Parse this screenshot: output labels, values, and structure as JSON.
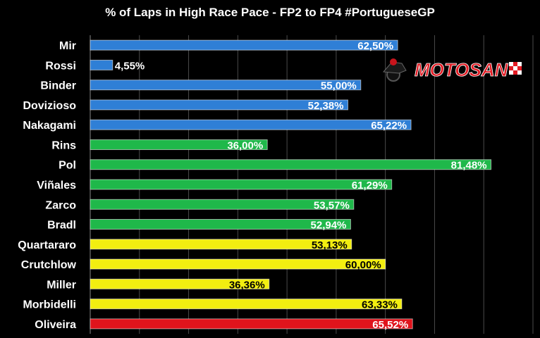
{
  "chart_data": {
    "type": "bar",
    "orientation": "horizontal",
    "title": "% of Laps in High Race Pace - FP2 to FP4 #PortugueseGP",
    "xlabel": "",
    "ylabel": "",
    "xlim": [
      0,
      90
    ],
    "grid": true,
    "categories": [
      "Mir",
      "Rossi",
      "Binder",
      "Dovizioso",
      "Nakagami",
      "Rins",
      "Pol",
      "Viñales",
      "Zarco",
      "Bradl",
      "Quartararo",
      "Crutchlow",
      "Miller",
      "Morbidelli",
      "Oliveira"
    ],
    "values": [
      62.5,
      4.55,
      55.0,
      52.38,
      65.22,
      36.0,
      81.48,
      61.29,
      53.57,
      52.94,
      53.13,
      60.0,
      36.36,
      63.33,
      65.52
    ],
    "labels": [
      "62,50%",
      "4,55%",
      "55,00%",
      "52,38%",
      "65,22%",
      "36,00%",
      "81,48%",
      "61,29%",
      "53,57%",
      "52,94%",
      "53,13%",
      "60,00%",
      "36,36%",
      "63,33%",
      "65,52%"
    ],
    "colors": [
      "#2f7fd6",
      "#2f7fd6",
      "#2f7fd6",
      "#2f7fd6",
      "#2f7fd6",
      "#1fb84a",
      "#1fb84a",
      "#1fb84a",
      "#1fb84a",
      "#1fb84a",
      "#f2ee10",
      "#f2ee10",
      "#f2ee10",
      "#f2ee10",
      "#e0141c"
    ]
  },
  "logo": {
    "text": "MOTOSAN",
    "accent": "#e31b23"
  }
}
